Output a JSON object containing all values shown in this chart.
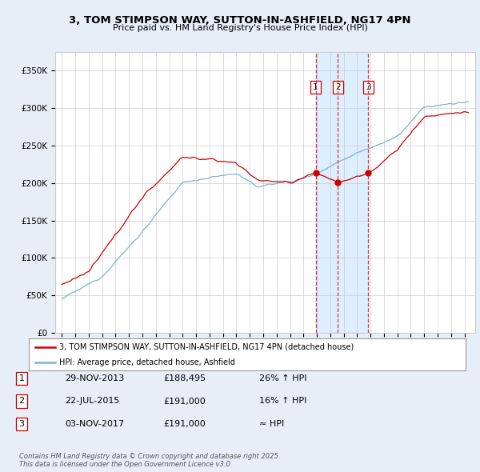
{
  "title": "3, TOM STIMPSON WAY, SUTTON-IN-ASHFIELD, NG17 4PN",
  "subtitle": "Price paid vs. HM Land Registry's House Price Index (HPI)",
  "ylim": [
    0,
    375000
  ],
  "yticks": [
    0,
    50000,
    100000,
    150000,
    200000,
    250000,
    300000,
    350000
  ],
  "ytick_labels": [
    "£0",
    "£50K",
    "£100K",
    "£150K",
    "£200K",
    "£250K",
    "£300K",
    "£350K"
  ],
  "hpi_color": "#7ab3d4",
  "price_color": "#cc0000",
  "vline_color": "#dd2222",
  "shade_color": "#ddeeff",
  "dot_color": "#cc0000",
  "legend_price_label": "3, TOM STIMPSON WAY, SUTTON-IN-ASHFIELD, NG17 4PN (detached house)",
  "legend_hpi_label": "HPI: Average price, detached house, Ashfield",
  "transactions": [
    {
      "num": 1,
      "date": "29-NOV-2013",
      "price": "£188,495",
      "change": "26% ↑ HPI",
      "x_year": 2013.91
    },
    {
      "num": 2,
      "date": "22-JUL-2015",
      "price": "£191,000",
      "change": "16% ↑ HPI",
      "x_year": 2015.55
    },
    {
      "num": 3,
      "date": "03-NOV-2017",
      "price": "£191,000",
      "change": "≈ HPI",
      "x_year": 2017.84
    }
  ],
  "footnote": "Contains HM Land Registry data © Crown copyright and database right 2025.\nThis data is licensed under the Open Government Licence v3.0.",
  "bg_color": "#e8eef8",
  "plot_bg_color": "#ffffff",
  "grid_color": "#cccccc",
  "xlim_start": 1994.5,
  "xlim_end": 2025.8
}
